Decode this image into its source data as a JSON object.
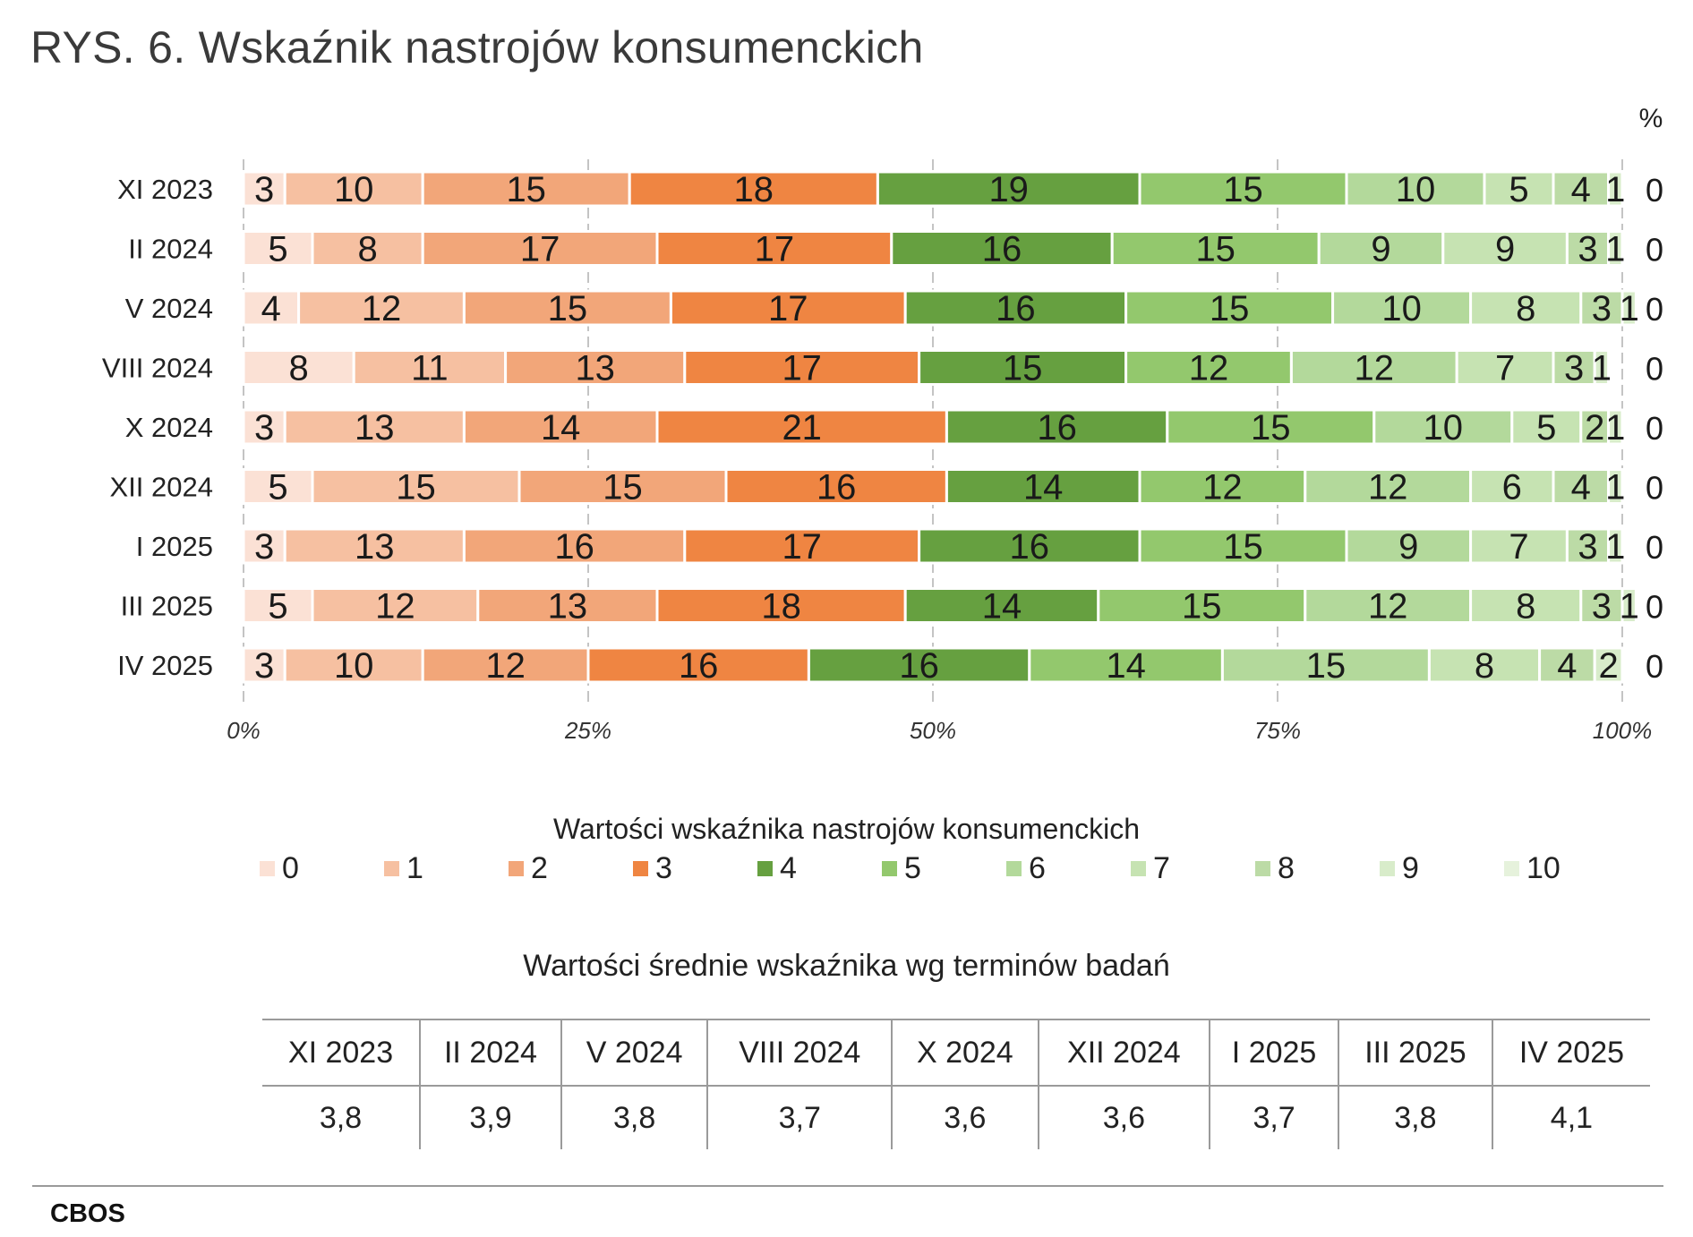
{
  "title": "RYS. 6. Wskaźnik nastrojów konsumenckich",
  "chart_data": {
    "type": "bar",
    "orientation": "horizontal",
    "stacked": true,
    "normalized": true,
    "unit_label": "%",
    "categories": [
      "XI 2023",
      "II 2024",
      "V 2024",
      "VIII 2024",
      "X 2024",
      "XII 2024",
      "I 2025",
      "III 2025",
      "IV 2025"
    ],
    "x_ticks": [
      "0%",
      "25%",
      "50%",
      "75%",
      "100%"
    ],
    "xlim": [
      0,
      100
    ],
    "grid": true,
    "legend_title": "Wartości wskaźnika nastrojów konsumenckich",
    "legend_position": "bottom",
    "series": [
      {
        "name": "0",
        "color": "#fbe1d5",
        "values": [
          3,
          5,
          4,
          8,
          3,
          5,
          3,
          5,
          3
        ]
      },
      {
        "name": "1",
        "color": "#f6c0a1",
        "values": [
          10,
          8,
          12,
          11,
          13,
          15,
          13,
          12,
          10
        ]
      },
      {
        "name": "2",
        "color": "#f2a679",
        "values": [
          15,
          17,
          15,
          13,
          14,
          15,
          16,
          13,
          12
        ]
      },
      {
        "name": "3",
        "color": "#ef8542",
        "values": [
          18,
          17,
          17,
          17,
          21,
          16,
          17,
          18,
          16
        ]
      },
      {
        "name": "4",
        "color": "#66a040",
        "values": [
          19,
          16,
          16,
          15,
          16,
          14,
          16,
          14,
          16
        ]
      },
      {
        "name": "5",
        "color": "#93c86d",
        "values": [
          15,
          15,
          15,
          12,
          15,
          12,
          15,
          15,
          14
        ]
      },
      {
        "name": "6",
        "color": "#b3d99b",
        "values": [
          10,
          9,
          10,
          12,
          10,
          12,
          9,
          12,
          15
        ]
      },
      {
        "name": "7",
        "color": "#c6e3b2",
        "values": [
          5,
          9,
          8,
          7,
          5,
          6,
          7,
          8,
          8
        ]
      },
      {
        "name": "8",
        "color": "#bcdba6",
        "values": [
          4,
          3,
          3,
          3,
          2,
          4,
          3,
          3,
          4
        ]
      },
      {
        "name": "9",
        "color": "#d8ecca",
        "values": [
          1,
          1,
          1,
          1,
          1,
          1,
          1,
          1,
          2
        ]
      },
      {
        "name": "10",
        "color": "#e6f2dc",
        "values": [
          0,
          0,
          0,
          0,
          0,
          0,
          0,
          0,
          0
        ]
      }
    ],
    "end_labels": [
      "0",
      "0",
      "0",
      "0",
      "0",
      "0",
      "0",
      "0",
      "0"
    ]
  },
  "means_table": {
    "title": "Wartości średnie wskaźnika wg terminów badań",
    "headers": [
      "XI 2023",
      "II 2024",
      "V 2024",
      "VIII 2024",
      "X 2024",
      "XII 2024",
      "I 2025",
      "III 2025",
      "IV 2025"
    ],
    "values": [
      "3,8",
      "3,9",
      "3,8",
      "3,7",
      "3,6",
      "3,6",
      "3,7",
      "3,8",
      "4,1"
    ]
  },
  "footer": {
    "source": "CBOS"
  }
}
